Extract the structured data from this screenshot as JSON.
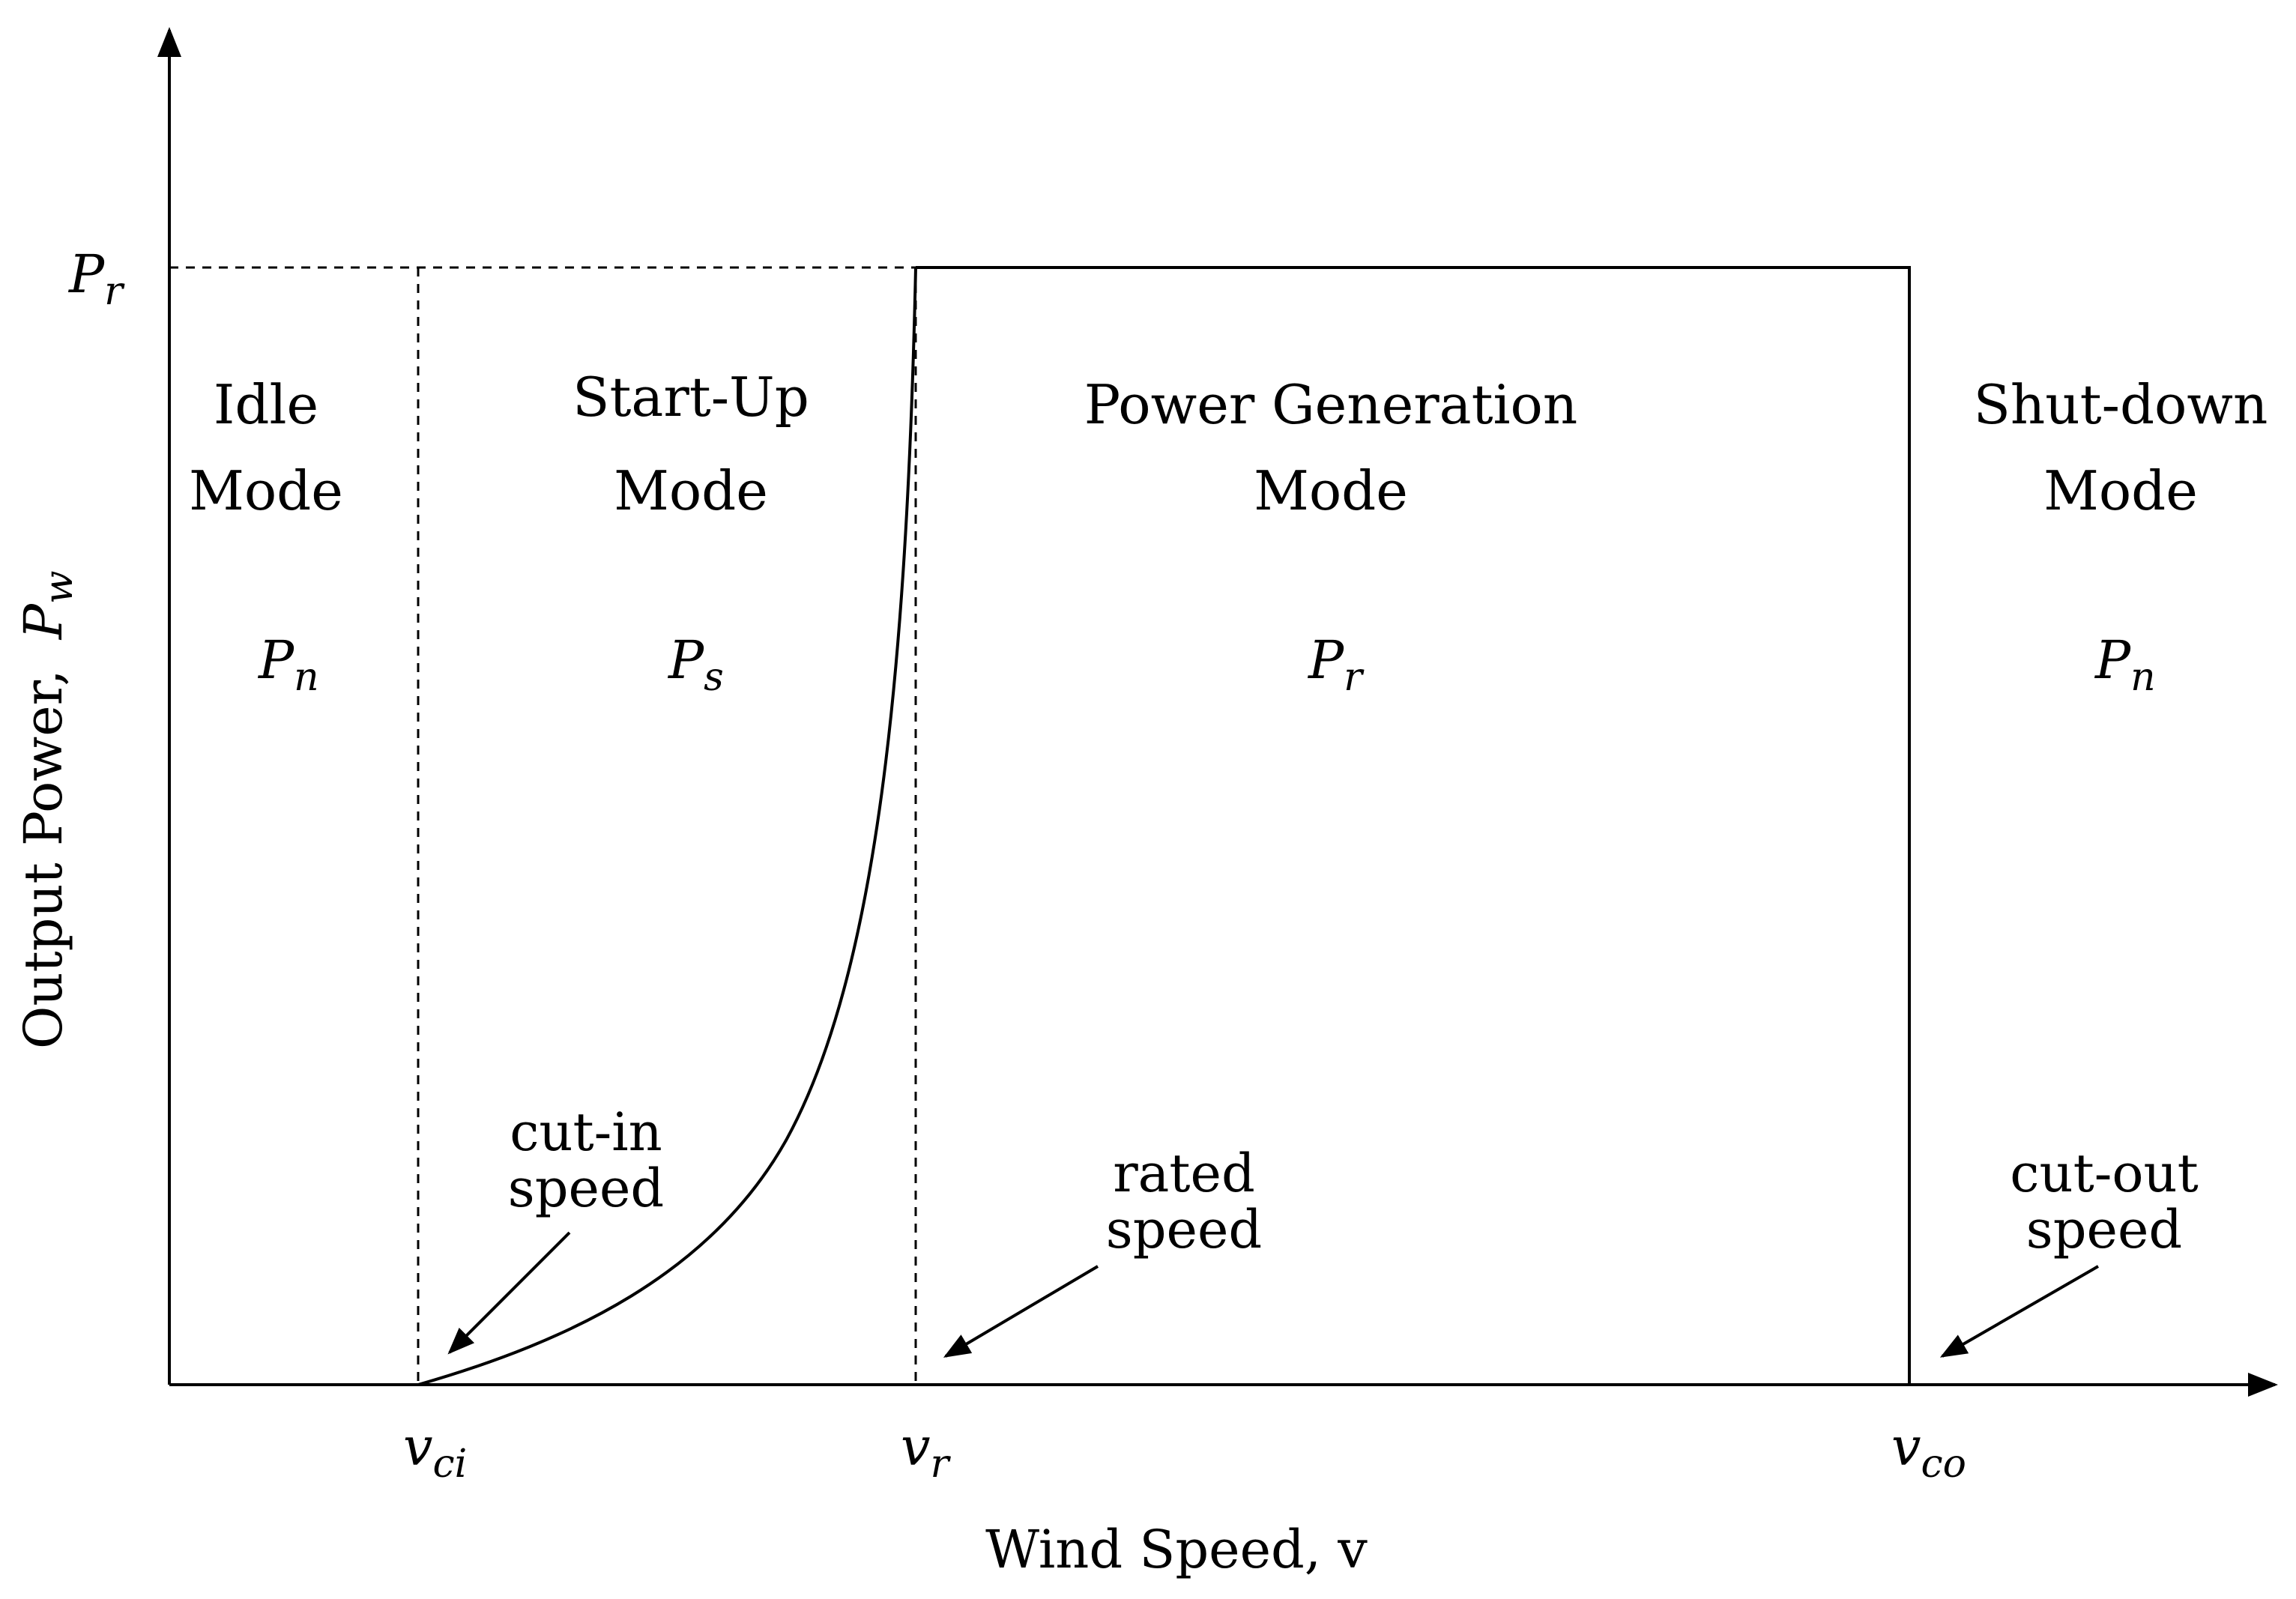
{
  "diagram": {
    "y_axis_label": "Output Power,",
    "y_axis_symbol": "P",
    "y_axis_symbol_sub": "w",
    "x_axis_label": "Wind Speed, v",
    "y_tick": {
      "symbol": "P",
      "sub": "r"
    },
    "x_ticks": [
      {
        "symbol": "v",
        "sub": "ci"
      },
      {
        "symbol": "v",
        "sub": "r"
      },
      {
        "symbol": "v",
        "sub": "co"
      }
    ],
    "modes": [
      {
        "line1": "Idle",
        "line2": "Mode",
        "power_symbol": "P",
        "power_sub": "n"
      },
      {
        "line1": "Start-Up",
        "line2": "Mode",
        "power_symbol": "P",
        "power_sub": "s"
      },
      {
        "line1": "Power Generation",
        "line2": "Mode",
        "power_symbol": "P",
        "power_sub": "r"
      },
      {
        "line1": "Shut-down",
        "line2": "Mode",
        "power_symbol": "P",
        "power_sub": "n"
      }
    ],
    "annotations": [
      {
        "line1": "cut-in",
        "line2": "speed"
      },
      {
        "line1": "rated",
        "line2": "speed"
      },
      {
        "line1": "cut-out",
        "line2": "speed"
      }
    ]
  }
}
